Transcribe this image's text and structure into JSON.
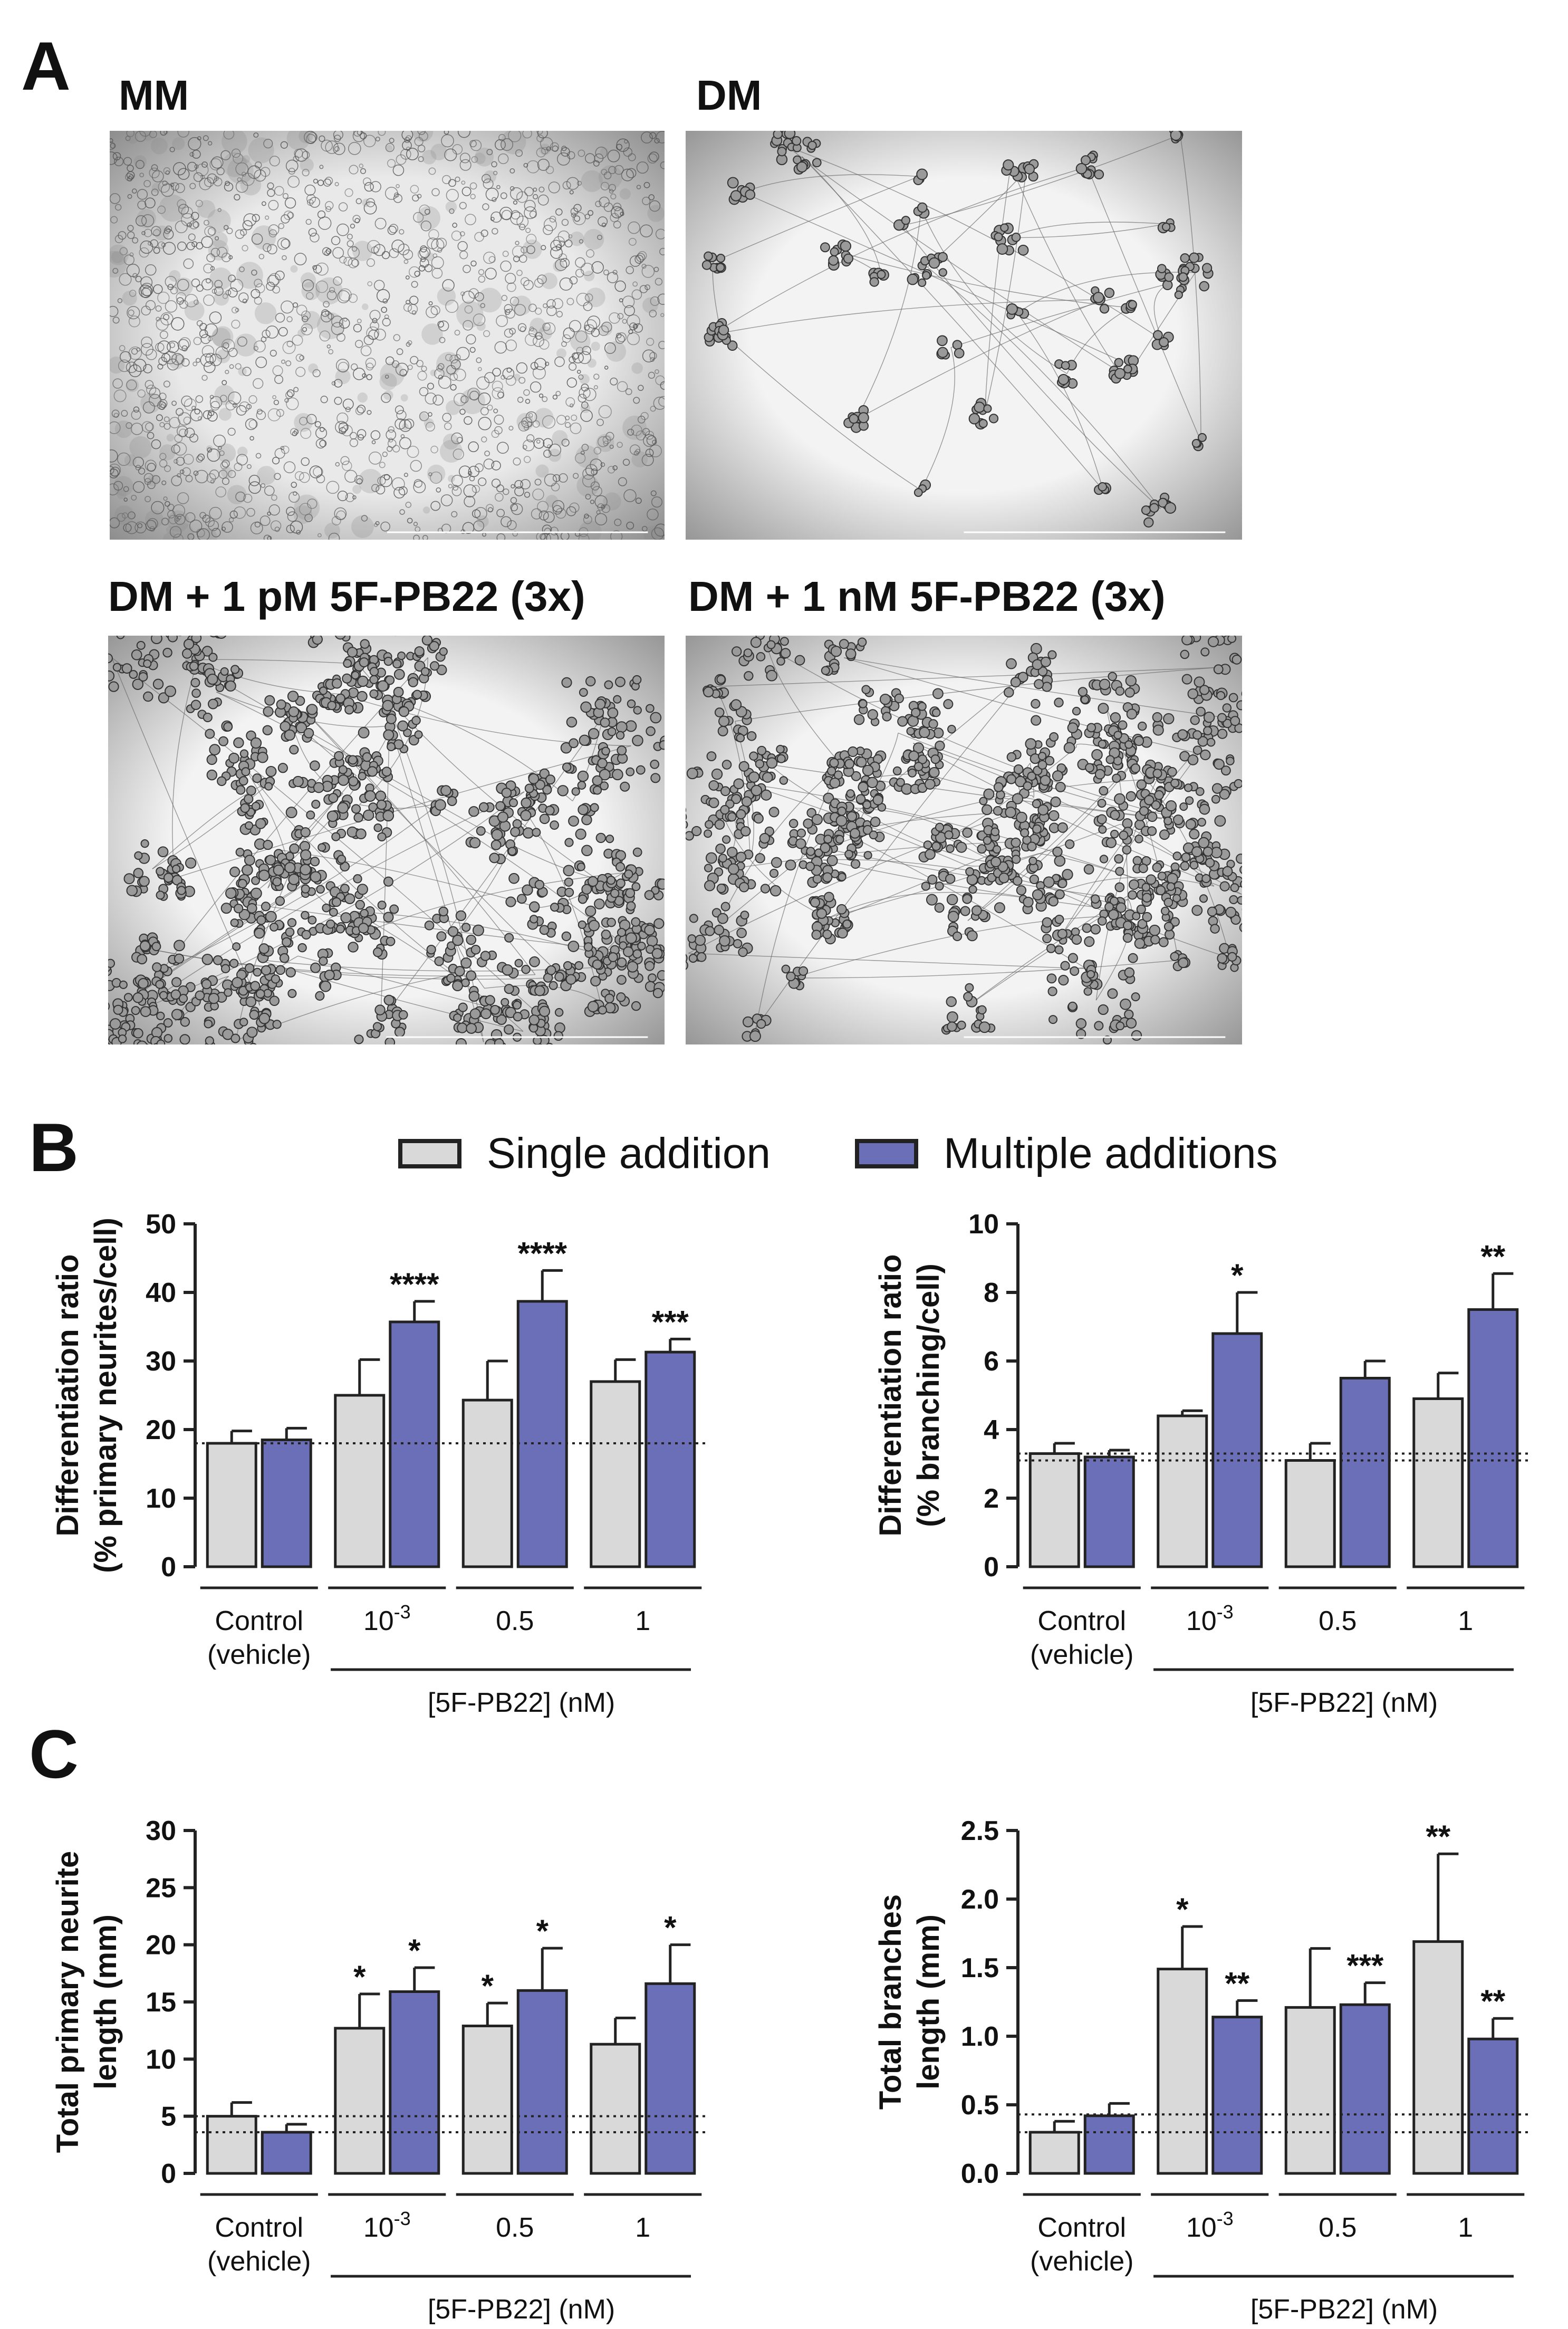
{
  "panel_letters": {
    "a": "A",
    "b": "B",
    "c": "C"
  },
  "micrographs": [
    {
      "label": "MM",
      "style": "dense"
    },
    {
      "label": "DM",
      "style": "sparse"
    },
    {
      "label": "DM + 1 pM 5F-PB22 (3x)",
      "style": "clusters"
    },
    {
      "label": "DM + 1 nM 5F-PB22 (3x)",
      "style": "clusters2"
    }
  ],
  "legend": {
    "single": "Single addition",
    "multiple": "Multiple additions"
  },
  "colors": {
    "single": "#d9d9d9",
    "multiple": "#6a6fb8",
    "stroke": "#222222"
  },
  "chart_data": [
    {
      "type": "bar",
      "panel": "B",
      "ylabel": "Differentiation ratio\n(% primary neurites/cell)",
      "ylim": [
        0,
        50
      ],
      "yticks": [
        "0",
        "10",
        "20",
        "30",
        "40",
        "50"
      ],
      "categories": [
        "Control\n(vehicle)",
        "10^-3",
        "0.5",
        "1"
      ],
      "xlabel": "[5F-PB22] (nM)",
      "series": [
        {
          "name": "Single addition",
          "values": [
            18,
            25,
            24.3,
            27
          ],
          "errors": [
            1.8,
            5.2,
            5.7,
            3.2
          ],
          "stars": [
            "",
            "",
            "",
            ""
          ]
        },
        {
          "name": "Multiple additions",
          "values": [
            18.5,
            35.7,
            38.7,
            31.3
          ],
          "errors": [
            1.7,
            3,
            4.5,
            1.9
          ],
          "stars": [
            "",
            "****",
            "****",
            "***"
          ]
        }
      ],
      "reference_lines": [
        18
      ]
    },
    {
      "type": "bar",
      "panel": "B",
      "ylabel": "Differentiation ratio\n(% branching/cell)",
      "ylim": [
        0,
        10
      ],
      "yticks": [
        "0",
        "2",
        "4",
        "6",
        "8",
        "10"
      ],
      "categories": [
        "Control\n(vehicle)",
        "10^-3",
        "0.5",
        "1"
      ],
      "xlabel": "[5F-PB22] (nM)",
      "series": [
        {
          "name": "Single addition",
          "values": [
            3.3,
            4.4,
            3.1,
            4.9
          ],
          "errors": [
            0.3,
            0.15,
            0.5,
            0.75
          ],
          "stars": [
            "",
            "",
            "",
            ""
          ]
        },
        {
          "name": "Multiple additions",
          "values": [
            3.2,
            6.8,
            5.5,
            7.5
          ],
          "errors": [
            0.2,
            1.2,
            0.5,
            1.05
          ],
          "stars": [
            "",
            "*",
            "",
            "**"
          ]
        }
      ],
      "reference_lines": [
        3.3,
        3.1
      ]
    },
    {
      "type": "bar",
      "panel": "C",
      "ylabel": "Total primary neurite\nlength (mm)",
      "ylim": [
        0,
        30
      ],
      "yticks": [
        "0",
        "5",
        "10",
        "15",
        "20",
        "25",
        "30"
      ],
      "categories": [
        "Control\n(vehicle)",
        "10^-3",
        "0.5",
        "1"
      ],
      "xlabel": "[5F-PB22] (nM)",
      "series": [
        {
          "name": "Single addition",
          "values": [
            5,
            12.7,
            12.9,
            11.3
          ],
          "errors": [
            1.2,
            3,
            2,
            2.3
          ],
          "stars": [
            "",
            "*",
            "*",
            ""
          ]
        },
        {
          "name": "Multiple additions",
          "values": [
            3.6,
            15.9,
            16,
            16.6
          ],
          "errors": [
            0.7,
            2.1,
            3.7,
            3.4
          ],
          "stars": [
            "",
            "*",
            "*",
            "*"
          ]
        }
      ],
      "reference_lines": [
        5,
        3.6
      ]
    },
    {
      "type": "bar",
      "panel": "C",
      "ylabel": "Total branches\nlength (mm)",
      "ylim": [
        0,
        2.5
      ],
      "yticks": [
        "0.0",
        "0.5",
        "1.0",
        "1.5",
        "2.0",
        "2.5"
      ],
      "categories": [
        "Control\n(vehicle)",
        "10^-3",
        "0.5",
        "1"
      ],
      "xlabel": "[5F-PB22] (nM)",
      "series": [
        {
          "name": "Single addition",
          "values": [
            0.3,
            1.49,
            1.21,
            1.69
          ],
          "errors": [
            0.08,
            0.31,
            0.43,
            0.64
          ],
          "stars": [
            "",
            "*",
            "",
            "**"
          ]
        },
        {
          "name": "Multiple additions",
          "values": [
            0.42,
            1.14,
            1.23,
            0.98
          ],
          "errors": [
            0.09,
            0.12,
            0.16,
            0.15
          ],
          "stars": [
            "",
            "**",
            "***",
            "**"
          ]
        }
      ],
      "reference_lines": [
        0.43,
        0.3
      ]
    }
  ]
}
